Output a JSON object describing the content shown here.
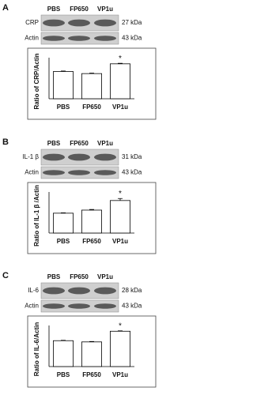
{
  "blots": [
    {
      "panel": "A",
      "lanes": [
        "PBS",
        "FP650",
        "VP1u"
      ],
      "rows": [
        {
          "label": "CRP",
          "size": "27 kDa"
        },
        {
          "label": "Actin",
          "size": "43 kDa"
        }
      ]
    },
    {
      "panel": "B",
      "lanes": [
        "PBS",
        "FP650",
        "VP1u"
      ],
      "rows": [
        {
          "label": "IL-1 β",
          "size": "31 kDa"
        },
        {
          "label": "Actin",
          "size": "43 kDa"
        }
      ]
    },
    {
      "panel": "C",
      "lanes": [
        "PBS",
        "FP650",
        "VP1u"
      ],
      "rows": [
        {
          "label": "IL-6",
          "size": "28 kDa"
        },
        {
          "label": "Actin",
          "size": "43 kDa"
        }
      ]
    }
  ],
  "chart_data": [
    {
      "type": "bar",
      "y_label": "Ratio of CRP/Actin",
      "categories": [
        "PBS",
        "FP650",
        "VP1u"
      ],
      "values": [
        0.53,
        0.49,
        0.68
      ],
      "errors": [
        0.01,
        0.01,
        0.01
      ],
      "color": "#ffffff",
      "ylim": [
        0,
        0.8
      ],
      "annotations": [
        {
          "text": "*",
          "x": "VP1u"
        }
      ]
    },
    {
      "type": "bar",
      "y_label": "Ratio of IL-1 β /Actin",
      "categories": [
        "PBS",
        "FP650",
        "VP1u"
      ],
      "values": [
        0.58,
        0.67,
        0.95
      ],
      "errors": [
        0.01,
        0.02,
        0.06
      ],
      "color": "#ffffff",
      "ylim": [
        0,
        1.2
      ],
      "annotations": [
        {
          "text": "*",
          "x": "VP1u"
        }
      ]
    },
    {
      "type": "bar",
      "y_label": "Ratio of IL-6/Actin",
      "categories": [
        "PBS",
        "FP650",
        "VP1u"
      ],
      "values": [
        0.63,
        0.6,
        0.86
      ],
      "errors": [
        0.01,
        0.01,
        0.01
      ],
      "color": "#ffffff",
      "ylim": [
        0,
        1.0
      ],
      "annotations": [
        {
          "text": "*",
          "x": "VP1u"
        }
      ]
    }
  ]
}
